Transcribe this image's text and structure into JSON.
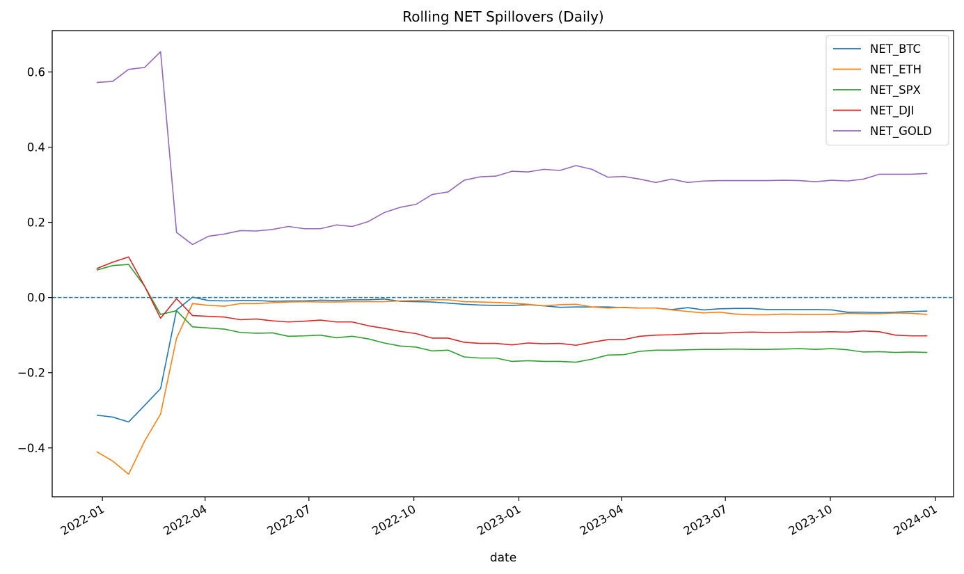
{
  "chart_data": {
    "type": "line",
    "title": "Rolling NET Spillovers (Daily)",
    "xlabel": "date",
    "ylabel": "",
    "x_range": [
      "2021-11-18",
      "2024-01-17"
    ],
    "ylim": [
      -0.53,
      0.71
    ],
    "y_ticks": [
      -0.4,
      -0.2,
      0.0,
      0.2,
      0.4,
      0.6
    ],
    "y_tick_labels": [
      "−0.4",
      "−0.2",
      "0.0",
      "0.2",
      "0.4",
      "0.6"
    ],
    "x_ticks": [
      "2022-01-01",
      "2022-04-01",
      "2022-07-01",
      "2022-10-01",
      "2023-01-01",
      "2023-04-01",
      "2023-07-01",
      "2023-10-01",
      "2024-01-01"
    ],
    "x_tick_labels": [
      "2022-01",
      "2022-04",
      "2022-07",
      "2022-10",
      "2023-01",
      "2023-04",
      "2023-07",
      "2023-10",
      "2024-01"
    ],
    "grid": false,
    "legend_position": "top-right",
    "reference_line": {
      "y": 0.0,
      "style": "dashed",
      "color": "#1f77b4"
    },
    "x": [
      "2021-12-27",
      "2022-01-10",
      "2022-01-24",
      "2022-02-07",
      "2022-02-21",
      "2022-03-07",
      "2022-03-21",
      "2022-04-04",
      "2022-04-18",
      "2022-05-02",
      "2022-05-16",
      "2022-05-30",
      "2022-06-13",
      "2022-06-27",
      "2022-07-11",
      "2022-07-25",
      "2022-08-08",
      "2022-08-22",
      "2022-09-05",
      "2022-09-19",
      "2022-10-03",
      "2022-10-17",
      "2022-10-31",
      "2022-11-14",
      "2022-11-28",
      "2022-12-12",
      "2022-12-26",
      "2023-01-09",
      "2023-01-23",
      "2023-02-06",
      "2023-02-20",
      "2023-03-06",
      "2023-03-20",
      "2023-04-03",
      "2023-04-17",
      "2023-05-01",
      "2023-05-15",
      "2023-05-29",
      "2023-06-12",
      "2023-06-26",
      "2023-07-10",
      "2023-07-24",
      "2023-08-07",
      "2023-08-21",
      "2023-09-04",
      "2023-09-18",
      "2023-10-02",
      "2023-10-16",
      "2023-10-30",
      "2023-11-13",
      "2023-11-27",
      "2023-12-11",
      "2023-12-25"
    ],
    "series": [
      {
        "name": "NET_BTC",
        "color": "#1f77b4",
        "values": [
          -0.313,
          -0.318,
          -0.331,
          -0.287,
          -0.242,
          -0.033,
          0.001,
          -0.008,
          -0.009,
          -0.008,
          -0.008,
          -0.01,
          -0.009,
          -0.009,
          -0.007,
          -0.008,
          -0.006,
          -0.006,
          -0.004,
          -0.01,
          -0.011,
          -0.012,
          -0.015,
          -0.018,
          -0.02,
          -0.021,
          -0.021,
          -0.019,
          -0.022,
          -0.026,
          -0.025,
          -0.025,
          -0.025,
          -0.027,
          -0.028,
          -0.028,
          -0.032,
          -0.027,
          -0.033,
          -0.03,
          -0.029,
          -0.029,
          -0.032,
          -0.032,
          -0.032,
          -0.032,
          -0.033,
          -0.039,
          -0.039,
          -0.04,
          -0.039,
          -0.037,
          -0.036
        ]
      },
      {
        "name": "NET_ETH",
        "color": "#ff7f0e",
        "values": [
          -0.41,
          -0.435,
          -0.47,
          -0.382,
          -0.31,
          -0.108,
          -0.016,
          -0.021,
          -0.023,
          -0.016,
          -0.016,
          -0.014,
          -0.012,
          -0.011,
          -0.012,
          -0.012,
          -0.011,
          -0.011,
          -0.011,
          -0.009,
          -0.008,
          -0.006,
          -0.006,
          -0.011,
          -0.012,
          -0.013,
          -0.015,
          -0.018,
          -0.022,
          -0.019,
          -0.018,
          -0.025,
          -0.028,
          -0.026,
          -0.028,
          -0.028,
          -0.033,
          -0.037,
          -0.041,
          -0.039,
          -0.044,
          -0.046,
          -0.046,
          -0.044,
          -0.045,
          -0.045,
          -0.045,
          -0.042,
          -0.043,
          -0.043,
          -0.041,
          -0.042,
          -0.045
        ]
      },
      {
        "name": "NET_SPX",
        "color": "#2ca02c",
        "values": [
          0.073,
          0.085,
          0.088,
          0.03,
          -0.045,
          -0.035,
          -0.078,
          -0.081,
          -0.084,
          -0.093,
          -0.095,
          -0.094,
          -0.103,
          -0.102,
          -0.1,
          -0.107,
          -0.103,
          -0.11,
          -0.121,
          -0.129,
          -0.132,
          -0.142,
          -0.14,
          -0.158,
          -0.161,
          -0.161,
          -0.17,
          -0.168,
          -0.17,
          -0.17,
          -0.172,
          -0.164,
          -0.153,
          -0.152,
          -0.143,
          -0.14,
          -0.14,
          -0.139,
          -0.138,
          -0.138,
          -0.137,
          -0.138,
          -0.138,
          -0.137,
          -0.136,
          -0.138,
          -0.136,
          -0.139,
          -0.145,
          -0.144,
          -0.146,
          -0.145,
          -0.146
        ]
      },
      {
        "name": "NET_DJI",
        "color": "#d62728",
        "values": [
          0.077,
          0.094,
          0.108,
          0.03,
          -0.055,
          -0.003,
          -0.048,
          -0.05,
          -0.052,
          -0.059,
          -0.057,
          -0.062,
          -0.065,
          -0.063,
          -0.06,
          -0.065,
          -0.065,
          -0.075,
          -0.082,
          -0.09,
          -0.096,
          -0.108,
          -0.108,
          -0.119,
          -0.122,
          -0.122,
          -0.126,
          -0.121,
          -0.123,
          -0.122,
          -0.127,
          -0.119,
          -0.112,
          -0.112,
          -0.103,
          -0.1,
          -0.099,
          -0.097,
          -0.095,
          -0.095,
          -0.093,
          -0.092,
          -0.093,
          -0.093,
          -0.092,
          -0.092,
          -0.091,
          -0.092,
          -0.089,
          -0.091,
          -0.1,
          -0.102,
          -0.102
        ]
      },
      {
        "name": "NET_GOLD",
        "color": "#9467bd",
        "values": [
          0.572,
          0.575,
          0.607,
          0.612,
          0.654,
          0.173,
          0.141,
          0.163,
          0.169,
          0.178,
          0.177,
          0.181,
          0.189,
          0.183,
          0.183,
          0.193,
          0.189,
          0.202,
          0.226,
          0.24,
          0.248,
          0.274,
          0.281,
          0.312,
          0.321,
          0.323,
          0.336,
          0.334,
          0.341,
          0.338,
          0.351,
          0.341,
          0.32,
          0.322,
          0.315,
          0.306,
          0.315,
          0.306,
          0.31,
          0.311,
          0.311,
          0.311,
          0.311,
          0.312,
          0.311,
          0.308,
          0.312,
          0.31,
          0.315,
          0.328,
          0.328,
          0.328,
          0.33
        ]
      }
    ]
  }
}
